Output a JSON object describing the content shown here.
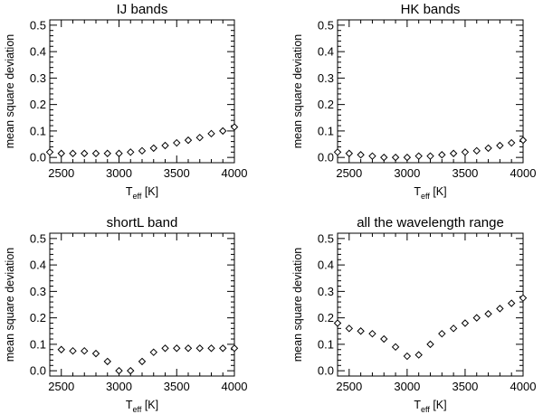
{
  "chart_data": [
    {
      "type": "scatter",
      "title": "IJ bands",
      "xlabel_main": "T",
      "xlabel_sub": "eff",
      "xlabel_unit": "[K]",
      "ylabel": "mean square deviation",
      "xlim": [
        2400,
        4000
      ],
      "ylim": [
        -0.02,
        0.52
      ],
      "xticks": [
        "2500",
        "3000",
        "3500",
        "4000"
      ],
      "yticks": [
        "0.0",
        "0.1",
        "0.2",
        "0.3",
        "0.4",
        "0.5"
      ],
      "x": [
        2400,
        2500,
        2600,
        2700,
        2800,
        2900,
        3000,
        3100,
        3200,
        3300,
        3400,
        3500,
        3600,
        3700,
        3800,
        3900,
        4000
      ],
      "y": [
        0.02,
        0.015,
        0.015,
        0.015,
        0.015,
        0.015,
        0.015,
        0.02,
        0.025,
        0.035,
        0.045,
        0.055,
        0.065,
        0.075,
        0.09,
        0.1,
        0.115
      ]
    },
    {
      "type": "scatter",
      "title": "HK bands",
      "xlabel_main": "T",
      "xlabel_sub": "eff",
      "xlabel_unit": "[K]",
      "ylabel": "mean square deviation",
      "xlim": [
        2400,
        4000
      ],
      "ylim": [
        -0.02,
        0.52
      ],
      "xticks": [
        "2500",
        "3000",
        "3500",
        "4000"
      ],
      "yticks": [
        "0.0",
        "0.1",
        "0.2",
        "0.3",
        "0.4",
        "0.5"
      ],
      "x": [
        2400,
        2500,
        2600,
        2700,
        2800,
        2900,
        3000,
        3100,
        3200,
        3300,
        3400,
        3500,
        3600,
        3700,
        3800,
        3900,
        4000
      ],
      "y": [
        0.02,
        0.015,
        0.01,
        0.005,
        0.0,
        0.0,
        0.0,
        0.005,
        0.005,
        0.01,
        0.015,
        0.02,
        0.025,
        0.035,
        0.045,
        0.055,
        0.065
      ]
    },
    {
      "type": "scatter",
      "title": "shortL band",
      "xlabel_main": "T",
      "xlabel_sub": "eff",
      "xlabel_unit": "[K]",
      "ylabel": "mean square deviation",
      "xlim": [
        2400,
        4000
      ],
      "ylim": [
        -0.02,
        0.52
      ],
      "xticks": [
        "2500",
        "3000",
        "3500",
        "4000"
      ],
      "yticks": [
        "0.0",
        "0.1",
        "0.2",
        "0.3",
        "0.4",
        "0.5"
      ],
      "x": [
        2500,
        2600,
        2700,
        2800,
        2900,
        3000,
        3100,
        3200,
        3300,
        3400,
        3500,
        3600,
        3700,
        3800,
        3900,
        4000
      ],
      "y": [
        0.08,
        0.075,
        0.075,
        0.065,
        0.035,
        0.0,
        0.0,
        0.035,
        0.07,
        0.085,
        0.085,
        0.085,
        0.085,
        0.085,
        0.085,
        0.085
      ]
    },
    {
      "type": "scatter",
      "title": "all the wavelength range",
      "xlabel_main": "T",
      "xlabel_sub": "eff",
      "xlabel_unit": "[K]",
      "ylabel": "mean square deviation",
      "xlim": [
        2400,
        4000
      ],
      "ylim": [
        -0.02,
        0.52
      ],
      "xticks": [
        "2500",
        "3000",
        "3500",
        "4000"
      ],
      "yticks": [
        "0.0",
        "0.1",
        "0.2",
        "0.3",
        "0.4",
        "0.5"
      ],
      "x": [
        2400,
        2500,
        2600,
        2700,
        2800,
        2900,
        3000,
        3100,
        3200,
        3300,
        3400,
        3500,
        3600,
        3700,
        3800,
        3900,
        4000
      ],
      "y": [
        0.18,
        0.16,
        0.15,
        0.14,
        0.12,
        0.09,
        0.055,
        0.06,
        0.1,
        0.14,
        0.16,
        0.18,
        0.2,
        0.215,
        0.235,
        0.255,
        0.275
      ]
    }
  ]
}
